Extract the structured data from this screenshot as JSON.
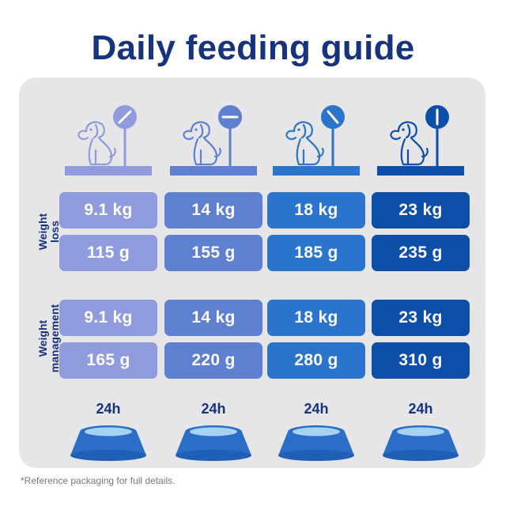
{
  "title": "Daily feeding guide",
  "colors": {
    "title": "#17337e",
    "panel": "#e6e6e9",
    "column_1": "#8f9bdc",
    "column_2": "#5f7fd0",
    "column_3": "#2a74cc",
    "column_4": "#0c4ea8"
  },
  "columns": [
    {
      "icon": "dog-on-scale-icon"
    },
    {
      "icon": "dog-on-scale-icon"
    },
    {
      "icon": "dog-on-scale-icon"
    },
    {
      "icon": "dog-on-scale-icon"
    }
  ],
  "sections": [
    {
      "label_line1": "Weight",
      "label_line2": "loss",
      "weights": [
        "9.1 kg",
        "14 kg",
        "18 kg",
        "23 kg"
      ],
      "amounts": [
        "115 g",
        "155 g",
        "185 g",
        "235 g"
      ]
    },
    {
      "label_line1": "Weight",
      "label_line2": "management",
      "weights": [
        "9.1 kg",
        "14 kg",
        "18 kg",
        "23 kg"
      ],
      "amounts": [
        "165 g",
        "220 g",
        "280 g",
        "310 g"
      ]
    }
  ],
  "bowls": [
    {
      "label": "24h",
      "icon": "food-bowl-icon"
    },
    {
      "label": "24h",
      "icon": "food-bowl-icon"
    },
    {
      "label": "24h",
      "icon": "food-bowl-icon"
    },
    {
      "label": "24h",
      "icon": "food-bowl-icon"
    }
  ],
  "footnote": "*Reference packaging for full details."
}
